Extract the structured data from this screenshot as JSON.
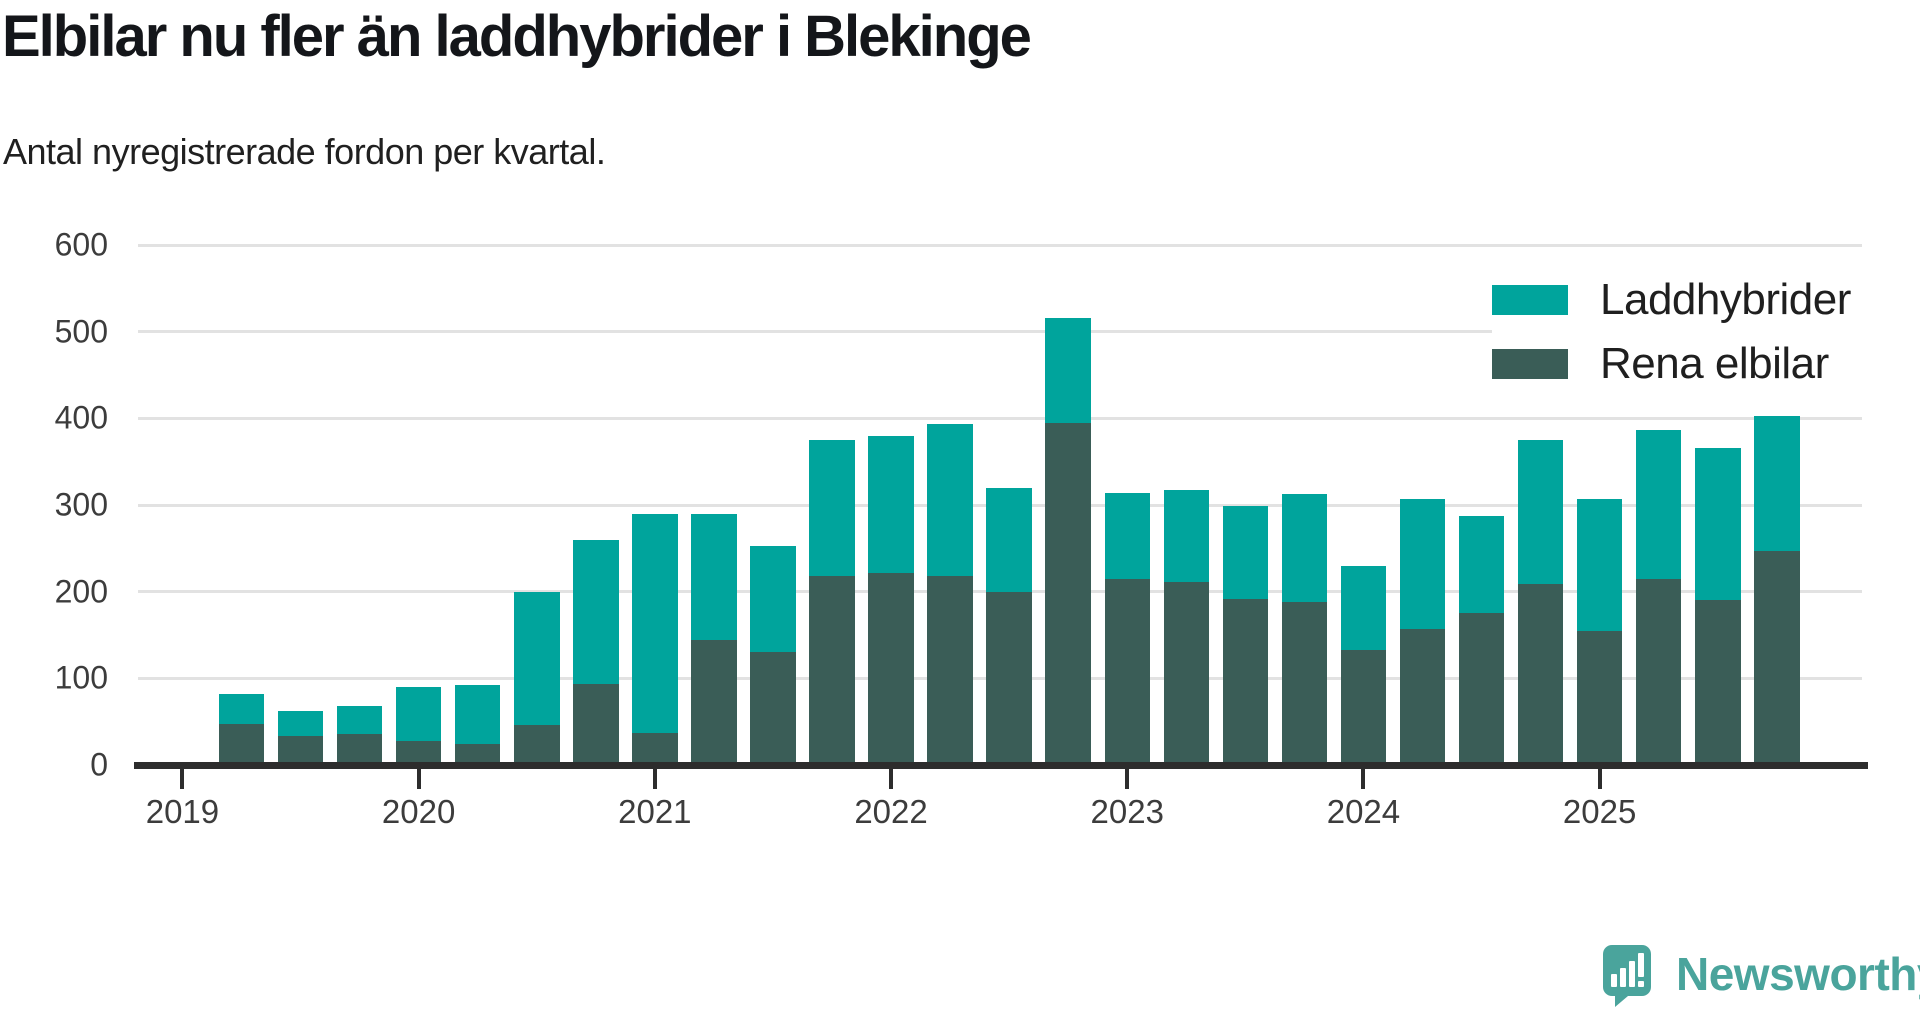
{
  "header": {
    "title": "Elbilar nu fler än laddhybrider i Blekinge",
    "subtitle": "Antal nyregistrerade fordon per kvartal."
  },
  "legend": {
    "items": [
      {
        "label": "Laddhybrider",
        "color": "#00a49c"
      },
      {
        "label": "Rena elbilar",
        "color": "#3a5d57"
      }
    ]
  },
  "branding": {
    "logo_text": "Newsworthy",
    "logo_icon": "newsworthy-speech-bubble-bar-chart-icon",
    "color": "#4aa49c"
  },
  "colors": {
    "background": "#ffffff",
    "gridline": "#e2e2e2",
    "axis": "#2d2d2d",
    "tick_text": "#3c3c3c",
    "title_text": "#14161a"
  },
  "chart_data": {
    "type": "bar",
    "stacked": true,
    "title": "Elbilar nu fler än laddhybrider i Blekinge",
    "subtitle": "Antal nyregistrerade fordon per kvartal.",
    "xlabel": "",
    "ylabel": "",
    "ylim": [
      0,
      600
    ],
    "yticks": [
      0,
      100,
      200,
      300,
      400,
      500,
      600
    ],
    "xticks": [
      "2019",
      "2020",
      "2021",
      "2022",
      "2023",
      "2024",
      "2025"
    ],
    "grid": true,
    "legend_position": "top-right",
    "categories": [
      "2019 Q2",
      "2019 Q3",
      "2019 Q4",
      "2020 Q1",
      "2020 Q2",
      "2020 Q3",
      "2020 Q4",
      "2021 Q1",
      "2021 Q2",
      "2021 Q3",
      "2021 Q4",
      "2022 Q1",
      "2022 Q2",
      "2022 Q3",
      "2022 Q4",
      "2023 Q1",
      "2023 Q2",
      "2023 Q3",
      "2023 Q4",
      "2024 Q1",
      "2024 Q2",
      "2024 Q3",
      "2024 Q4",
      "2025 Q1",
      "2025 Q2",
      "2025 Q3",
      "2025 Q4"
    ],
    "series": [
      {
        "name": "Laddhybrider",
        "color": "#00a49c",
        "stack_position": "top",
        "values": [
          35,
          28,
          32,
          62,
          68,
          154,
          166,
          253,
          146,
          123,
          157,
          158,
          176,
          120,
          121,
          99,
          106,
          108,
          125,
          97,
          150,
          112,
          166,
          152,
          171,
          176,
          156
        ]
      },
      {
        "name": "Rena elbilar",
        "color": "#3a5d57",
        "stack_position": "bottom",
        "values": [
          47,
          34,
          36,
          28,
          24,
          46,
          94,
          37,
          144,
          130,
          218,
          222,
          218,
          200,
          395,
          215,
          211,
          191,
          188,
          133,
          157,
          175,
          209,
          155,
          215,
          190,
          247
        ]
      }
    ],
    "totals": [
      82,
      62,
      68,
      90,
      92,
      200,
      260,
      290,
      290,
      253,
      375,
      380,
      394,
      320,
      516,
      314,
      317,
      299,
      313,
      230,
      307,
      287,
      375,
      307,
      386,
      366,
      403
    ]
  }
}
